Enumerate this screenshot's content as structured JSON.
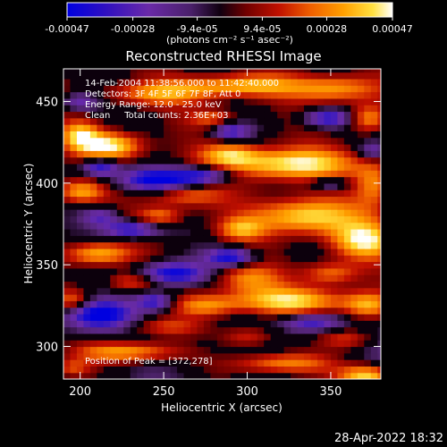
{
  "chart_data": {
    "type": "heatmap",
    "title": "Reconstructed RHESSI Image",
    "xlabel": "Heliocentric X (arcsec)",
    "ylabel": "Heliocentric Y (arcsec)",
    "xlim": [
      190,
      380
    ],
    "ylim": [
      280,
      470
    ],
    "x_ticks": [
      200,
      250,
      300,
      350
    ],
    "y_ticks": [
      300,
      350,
      400,
      450
    ],
    "colorbar": {
      "tick_labels": [
        "-0.00047",
        "-0.00028",
        "-9.4e-05",
        "9.4e-05",
        "0.00028",
        "0.00047"
      ],
      "tick_values": [
        -0.00047,
        -0.00028,
        -9.4e-05,
        9.4e-05,
        0.00028,
        0.00047
      ],
      "range": [
        -0.00047,
        0.00047
      ],
      "unit_label": "(photons cm⁻² s⁻¹ asec⁻²)"
    },
    "annotations": [
      "14-Feb-2004 11:38:56.000 to 11:42:40.000",
      "Detectors: 3F 4F 5F 6F 7F 8F, Att 0",
      "Energy Range: 12.0 - 25.0 keV",
      "Clean     Total counts: 2.36E+03"
    ],
    "peak_label": "Position of Peak = [372,278]",
    "peak_position": [
      372,
      278
    ],
    "colormap_stops": [
      "#0000e8",
      "#5a1aa8",
      "#7a3aa0",
      "#000000",
      "#9a0000",
      "#e04000",
      "#ff9000",
      "#ffd000",
      "#ffffff"
    ],
    "grid_spacing_arcsec": 4,
    "blobs": [
      {
        "x": 218,
        "y": 423,
        "sx": 14,
        "sy": 6,
        "a": 1.0
      },
      {
        "x": 200,
        "y": 430,
        "sx": 8,
        "sy": 6,
        "a": 0.7
      },
      {
        "x": 245,
        "y": 455,
        "sx": 22,
        "sy": 5,
        "a": 0.6
      },
      {
        "x": 296,
        "y": 460,
        "sx": 26,
        "sy": 5,
        "a": 0.8
      },
      {
        "x": 355,
        "y": 458,
        "sx": 18,
        "sy": 6,
        "a": 0.7
      },
      {
        "x": 372,
        "y": 440,
        "sx": 8,
        "sy": 6,
        "a": 0.7
      },
      {
        "x": 325,
        "y": 412,
        "sx": 28,
        "sy": 7,
        "a": 1.0
      },
      {
        "x": 290,
        "y": 418,
        "sx": 12,
        "sy": 5,
        "a": 0.6
      },
      {
        "x": 376,
        "y": 400,
        "sx": 8,
        "sy": 10,
        "a": 0.6
      },
      {
        "x": 200,
        "y": 395,
        "sx": 10,
        "sy": 5,
        "a": 0.7
      },
      {
        "x": 262,
        "y": 393,
        "sx": 16,
        "sy": 5,
        "a": 0.6
      },
      {
        "x": 248,
        "y": 380,
        "sx": 10,
        "sy": 4,
        "a": 0.6
      },
      {
        "x": 335,
        "y": 380,
        "sx": 22,
        "sy": 8,
        "a": 0.95
      },
      {
        "x": 370,
        "y": 365,
        "sx": 14,
        "sy": 8,
        "a": 0.9
      },
      {
        "x": 296,
        "y": 372,
        "sx": 10,
        "sy": 5,
        "a": 0.6
      },
      {
        "x": 210,
        "y": 357,
        "sx": 14,
        "sy": 5,
        "a": 0.8
      },
      {
        "x": 300,
        "y": 342,
        "sx": 14,
        "sy": 6,
        "a": 0.6
      },
      {
        "x": 350,
        "y": 345,
        "sx": 12,
        "sy": 5,
        "a": 0.6
      },
      {
        "x": 325,
        "y": 328,
        "sx": 28,
        "sy": 6,
        "a": 0.9
      },
      {
        "x": 372,
        "y": 325,
        "sx": 10,
        "sy": 6,
        "a": 0.7
      },
      {
        "x": 275,
        "y": 325,
        "sx": 14,
        "sy": 5,
        "a": 0.6
      },
      {
        "x": 196,
        "y": 328,
        "sx": 8,
        "sy": 5,
        "a": 0.6
      },
      {
        "x": 250,
        "y": 312,
        "sx": 18,
        "sy": 4,
        "a": 0.5
      },
      {
        "x": 300,
        "y": 306,
        "sx": 12,
        "sy": 5,
        "a": 0.6
      },
      {
        "x": 360,
        "y": 305,
        "sx": 12,
        "sy": 5,
        "a": 0.6
      },
      {
        "x": 228,
        "y": 297,
        "sx": 22,
        "sy": 5,
        "a": 0.95
      },
      {
        "x": 320,
        "y": 290,
        "sx": 22,
        "sy": 5,
        "a": 0.8
      },
      {
        "x": 372,
        "y": 282,
        "sx": 12,
        "sy": 5,
        "a": 1.0
      },
      {
        "x": 195,
        "y": 287,
        "sx": 8,
        "sy": 4,
        "a": 0.5
      },
      {
        "x": 280,
        "y": 440,
        "sx": 10,
        "sy": 4,
        "a": 0.5
      },
      {
        "x": 230,
        "y": 340,
        "sx": 10,
        "sy": 4,
        "a": 0.5
      }
    ],
    "negative_blobs": [
      {
        "x": 212,
        "y": 410,
        "sx": 8,
        "sy": 4,
        "a": 0.9
      },
      {
        "x": 246,
        "y": 402,
        "sx": 16,
        "sy": 5,
        "a": 1.0
      },
      {
        "x": 275,
        "y": 405,
        "sx": 12,
        "sy": 4,
        "a": 0.8
      },
      {
        "x": 230,
        "y": 372,
        "sx": 12,
        "sy": 4,
        "a": 0.9
      },
      {
        "x": 255,
        "y": 345,
        "sx": 14,
        "sy": 5,
        "a": 1.0
      },
      {
        "x": 290,
        "y": 355,
        "sx": 10,
        "sy": 4,
        "a": 0.9
      },
      {
        "x": 210,
        "y": 320,
        "sx": 14,
        "sy": 6,
        "a": 1.0
      },
      {
        "x": 245,
        "y": 328,
        "sx": 8,
        "sy": 4,
        "a": 0.8
      },
      {
        "x": 348,
        "y": 440,
        "sx": 10,
        "sy": 4,
        "a": 0.8
      },
      {
        "x": 290,
        "y": 432,
        "sx": 8,
        "sy": 4,
        "a": 0.7
      },
      {
        "x": 338,
        "y": 315,
        "sx": 12,
        "sy": 4,
        "a": 0.7
      },
      {
        "x": 200,
        "y": 450,
        "sx": 8,
        "sy": 4,
        "a": 0.6
      },
      {
        "x": 350,
        "y": 400,
        "sx": 8,
        "sy": 3,
        "a": 0.6
      },
      {
        "x": 375,
        "y": 420,
        "sx": 6,
        "sy": 4,
        "a": 0.5
      },
      {
        "x": 212,
        "y": 380,
        "sx": 8,
        "sy": 4,
        "a": 0.6
      }
    ]
  },
  "footer": {
    "timestamp": "28-Apr-2022 18:32"
  },
  "colors": {
    "background": "#000000",
    "text": "#ffffff",
    "axes": "#ffffff"
  }
}
